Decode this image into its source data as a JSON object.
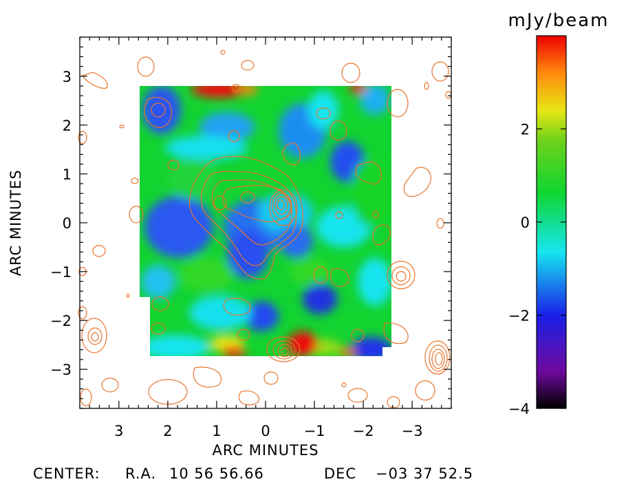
{
  "chart_data": {
    "type": "heatmap",
    "title": "",
    "xlabel": "ARC MINUTES",
    "ylabel": "ARC MINUTES",
    "xlim": [
      3.8,
      -3.8
    ],
    "ylim": [
      -3.8,
      3.8
    ],
    "x_ticks": [
      3,
      2,
      1,
      0,
      -1,
      -2,
      -3
    ],
    "x_tick_labels": [
      "3",
      "2",
      "1",
      "0",
      "−1",
      "−2",
      "−3"
    ],
    "y_ticks": [
      3,
      2,
      1,
      0,
      -1,
      -2,
      -3
    ],
    "y_tick_labels": [
      "3",
      "2",
      "1",
      "0",
      "−1",
      "−2",
      "−3"
    ],
    "map_extent": {
      "x": [
        2.75,
        -2.45
      ],
      "y": [
        -2.75,
        2.8
      ]
    },
    "colorbar": {
      "label": "mJy/beam",
      "range": [
        -4,
        4
      ],
      "ticks": [
        2,
        0,
        -2,
        -4
      ],
      "tick_labels": [
        "2",
        "0",
        "−2",
        "−4"
      ],
      "colormap": "rainbow (black-purple-blue-cyan-green-yellow-red)"
    },
    "contour_color": "#e8742c",
    "features": [
      {
        "kind": "positive peak",
        "x": 1.1,
        "y": 2.7,
        "value": 3.8
      },
      {
        "kind": "positive peak",
        "x": -0.6,
        "y": -2.55,
        "value": 3.5
      },
      {
        "kind": "negative hole",
        "x": -0.9,
        "y": -1.55,
        "value": -2.2
      },
      {
        "kind": "negative hole",
        "x": 0.1,
        "y": -1.9,
        "value": -1.8
      },
      {
        "kind": "negative hole",
        "x": -1.9,
        "y": -2.7,
        "value": -2.3
      },
      {
        "kind": "contour group peak",
        "x": -0.2,
        "y": 0.35,
        "value": 8
      }
    ],
    "center": {
      "label": "CENTER:",
      "ra_label": "R.A.",
      "ra": "10 56 56.66",
      "dec_label": "DEC",
      "dec": "−03 37 52.5"
    }
  }
}
